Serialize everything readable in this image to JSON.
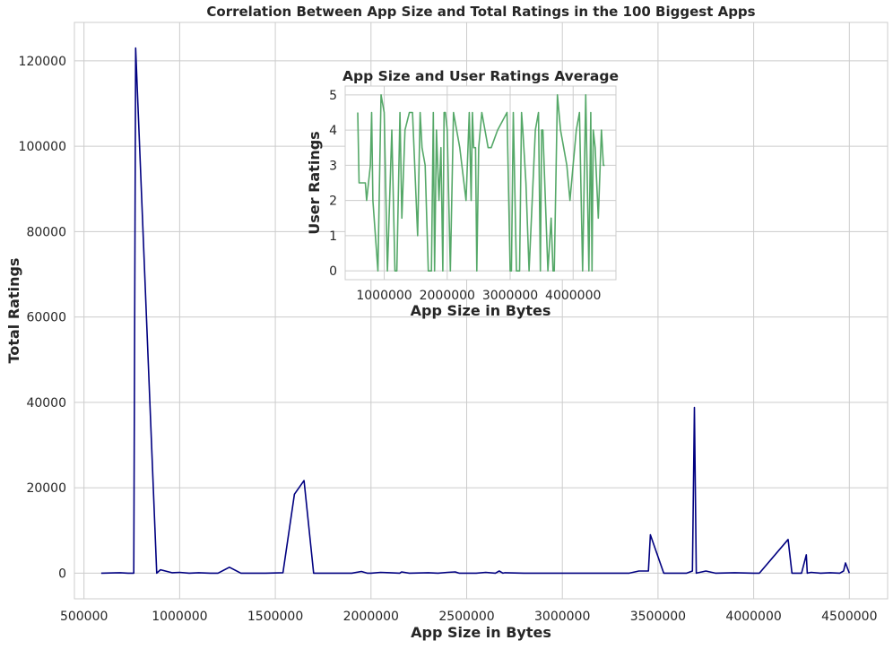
{
  "chart_data": [
    {
      "type": "line",
      "title": "Correlation Between App Size and Total Ratings in the 100 Biggest Apps",
      "xlabel": "App Size in Bytes",
      "ylabel": "Total Ratings",
      "xlim": [
        450000,
        4700000
      ],
      "ylim": [
        -6000,
        129000
      ],
      "xticks": [
        500000,
        1000000,
        1500000,
        2000000,
        2500000,
        3000000,
        3500000,
        4000000,
        4500000
      ],
      "xtick_labels": [
        "500000",
        "1000000",
        "1500000",
        "2000000",
        "2500000",
        "3000000",
        "3500000",
        "4000000",
        "4500000"
      ],
      "yticks": [
        0,
        20000,
        40000,
        60000,
        80000,
        100000,
        120000
      ],
      "ytick_labels": [
        "0",
        "20000",
        "40000",
        "60000",
        "80000",
        "100000",
        "120000"
      ],
      "grid": true,
      "line_color": "#000080",
      "series": [
        {
          "x": [
            590000,
            690000,
            730000,
            760000,
            770000,
            880000,
            900000,
            960000,
            1000000,
            1050000,
            1100000,
            1160000,
            1200000,
            1260000,
            1320000,
            1400000,
            1450000,
            1540000,
            1600000,
            1650000,
            1700000,
            1800000,
            1900000,
            1950000,
            1980000,
            2000000,
            2050000,
            2100000,
            2150000,
            2160000,
            2200000,
            2300000,
            2350000,
            2400000,
            2440000,
            2460000,
            2500000,
            2550000,
            2600000,
            2650000,
            2670000,
            2690000,
            2700000,
            2800000,
            3000000,
            3100000,
            3200000,
            3350000,
            3400000,
            3450000,
            3460000,
            3530000,
            3600000,
            3650000,
            3680000,
            3690000,
            3700000,
            3750000,
            3800000,
            3900000,
            4000000,
            4030000,
            4180000,
            4200000,
            4250000,
            4275000,
            4280000,
            4300000,
            4350000,
            4400000,
            4450000,
            4470000,
            4480000,
            4500000
          ],
          "values": [
            0,
            100,
            0,
            0,
            123000,
            0,
            800,
            100,
            200,
            0,
            100,
            0,
            0,
            1400,
            0,
            0,
            0,
            100,
            18500,
            21700,
            0,
            0,
            0,
            400,
            0,
            0,
            200,
            100,
            0,
            300,
            0,
            100,
            0,
            200,
            300,
            0,
            0,
            0,
            200,
            0,
            500,
            0,
            100,
            0,
            0,
            0,
            0,
            0,
            500,
            500,
            9000,
            0,
            0,
            0,
            500,
            38800,
            0,
            500,
            0,
            100,
            0,
            0,
            7900,
            0,
            0,
            4300,
            0,
            200,
            0,
            100,
            0,
            500,
            2400,
            0
          ]
        }
      ]
    },
    {
      "type": "line",
      "title": "App Size and User Ratings Average",
      "xlabel": "App Size in Bytes",
      "ylabel": "User Ratings",
      "xlim": [
        380000,
        4680000
      ],
      "ylim": [
        -0.25,
        5.25
      ],
      "xticks": [
        1000000,
        2000000,
        3000000,
        4000000
      ],
      "xtick_labels": [
        "1000000",
        "2000000",
        "3000000",
        "4000000"
      ],
      "yticks": [
        0,
        1,
        2,
        3,
        4,
        5
      ],
      "ytick_labels": [
        "0",
        "1",
        "2",
        "3",
        "4",
        "5"
      ],
      "grid": true,
      "line_color": "#55a868",
      "series": [
        {
          "x": [
            580000,
            600000,
            650000,
            700000,
            720000,
            780000,
            800000,
            820000,
            900000,
            950000,
            1000000,
            1050000,
            1120000,
            1170000,
            1200000,
            1250000,
            1280000,
            1330000,
            1400000,
            1450000,
            1530000,
            1570000,
            1600000,
            1650000,
            1700000,
            1750000,
            1780000,
            1800000,
            1830000,
            1870000,
            1900000,
            1930000,
            1950000,
            1970000,
            2000000,
            2050000,
            2100000,
            2150000,
            2200000,
            2300000,
            2350000,
            2380000,
            2400000,
            2420000,
            2450000,
            2470000,
            2500000,
            2550000,
            2600000,
            2650000,
            2700000,
            2800000,
            2950000,
            3000000,
            3020000,
            3050000,
            3100000,
            3150000,
            3180000,
            3200000,
            3250000,
            3300000,
            3400000,
            3450000,
            3480000,
            3500000,
            3520000,
            3600000,
            3650000,
            3680000,
            3700000,
            3750000,
            3800000,
            3850000,
            3900000,
            3950000,
            4000000,
            4050000,
            4100000,
            4150000,
            4200000,
            4250000,
            4280000,
            4300000,
            4320000,
            4350000,
            4400000,
            4450000,
            4480000,
            4500000
          ],
          "values": [
            4.5,
            2.5,
            2.5,
            2.5,
            2.0,
            3.0,
            4.5,
            2.0,
            0.0,
            5.0,
            4.5,
            0.0,
            4.0,
            0.0,
            0.0,
            4.5,
            1.5,
            4.0,
            4.5,
            4.5,
            1.0,
            4.5,
            3.5,
            3.0,
            0.0,
            0.0,
            4.5,
            0.0,
            4.0,
            2.0,
            3.5,
            0.0,
            4.5,
            4.5,
            4.0,
            0.0,
            4.5,
            4.0,
            3.5,
            2.0,
            4.5,
            2.0,
            4.5,
            3.5,
            3.5,
            0.0,
            3.5,
            4.5,
            4.0,
            3.5,
            3.5,
            4.0,
            4.5,
            0.0,
            0.0,
            4.5,
            0.0,
            0.0,
            4.5,
            4.0,
            2.5,
            0.0,
            4.0,
            4.5,
            0.0,
            4.0,
            4.0,
            0.0,
            1.5,
            0.0,
            0.0,
            5.0,
            4.0,
            3.5,
            3.0,
            2.0,
            3.0,
            4.0,
            4.5,
            0.0,
            5.0,
            0.0,
            4.5,
            0.0,
            4.0,
            3.5,
            1.5,
            4.0,
            3.0,
            3.0
          ]
        }
      ]
    }
  ]
}
